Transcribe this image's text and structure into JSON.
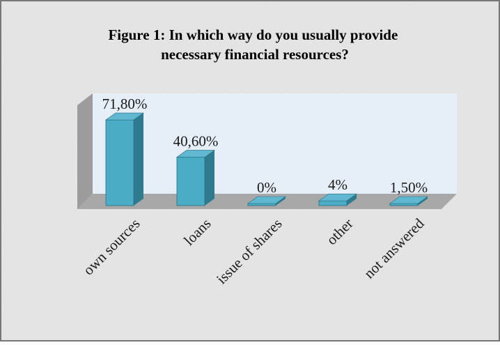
{
  "chart_data": {
    "type": "bar",
    "title": "Figure 1: In which way do you usually provide necessary financial resources?",
    "title_lines": [
      "Figure 1: In which way do you usually provide",
      "necessary financial resources?"
    ],
    "categories": [
      "own sources",
      "loans",
      "issue of shares",
      "other",
      "not answered"
    ],
    "values": [
      71.8,
      40.6,
      0,
      4,
      1.5
    ],
    "data_labels": [
      "71,80%",
      "40,60%",
      "0%",
      "4%",
      "1,50%"
    ],
    "ylim": [
      0,
      80
    ],
    "grid": false,
    "legend": "none",
    "style": "3d-column",
    "colors": {
      "bar_front": "#4BACC6",
      "bar_side": "#2E7A8E",
      "bar_top": "#5FB8CF",
      "back_wall": "#E6EEF8",
      "side_wall": "#9C9C9C",
      "floor": "#A8A8A8",
      "background": "#E9E9E9",
      "frame": "#777777"
    }
  }
}
